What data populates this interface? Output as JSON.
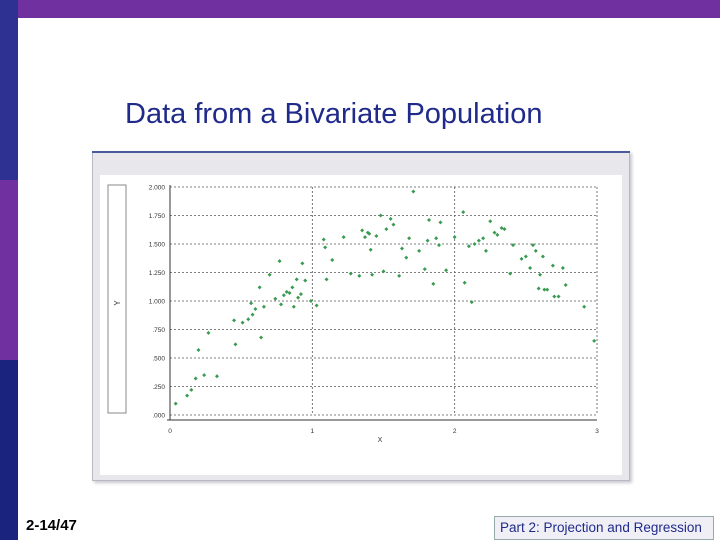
{
  "slide": {
    "title": "Data from a Bivariate Population",
    "number": "2-14/47",
    "footer": "Part 2: Projection and Regression"
  },
  "colors": {
    "accent_purple": "#7030a0",
    "accent_blue": "#2e3192",
    "title_blue": "#1f2a8a",
    "point_green": "#3a9a50"
  },
  "chart_data": {
    "type": "scatter",
    "title": "",
    "xlabel": "X",
    "ylabel": "Y",
    "xlim": [
      0,
      3
    ],
    "ylim": [
      0,
      2
    ],
    "x_ticks": [
      "0",
      "1",
      "2",
      "3"
    ],
    "y_ticks": [
      ".000",
      ".250",
      ".500",
      ".750",
      "1.000",
      "1.250",
      "1.500",
      "1.750",
      "2.000"
    ],
    "grid": true,
    "series": [
      {
        "values": [
          [
            0.04,
            0.1
          ],
          [
            0.12,
            0.17
          ],
          [
            0.15,
            0.22
          ],
          [
            0.18,
            0.32
          ],
          [
            0.2,
            0.57
          ],
          [
            0.24,
            0.35
          ],
          [
            0.27,
            0.72
          ],
          [
            0.33,
            0.34
          ],
          [
            0.45,
            0.83
          ],
          [
            0.46,
            0.62
          ],
          [
            0.51,
            0.81
          ],
          [
            0.55,
            0.84
          ],
          [
            0.57,
            0.98
          ],
          [
            0.58,
            0.88
          ],
          [
            0.6,
            0.93
          ],
          [
            0.63,
            1.12
          ],
          [
            0.64,
            0.68
          ],
          [
            0.66,
            0.95
          ],
          [
            0.7,
            1.23
          ],
          [
            0.74,
            1.02
          ],
          [
            0.77,
            1.35
          ],
          [
            0.78,
            0.97
          ],
          [
            0.8,
            1.05
          ],
          [
            0.82,
            1.08
          ],
          [
            0.84,
            1.07
          ],
          [
            0.86,
            1.12
          ],
          [
            0.87,
            0.95
          ],
          [
            0.89,
            1.19
          ],
          [
            0.9,
            1.03
          ],
          [
            0.92,
            1.06
          ],
          [
            0.93,
            1.33
          ],
          [
            0.95,
            1.18
          ],
          [
            0.99,
            1.0
          ],
          [
            1.03,
            0.96
          ],
          [
            1.08,
            1.54
          ],
          [
            1.09,
            1.47
          ],
          [
            1.1,
            1.19
          ],
          [
            1.14,
            1.36
          ],
          [
            1.22,
            1.56
          ],
          [
            1.27,
            1.24
          ],
          [
            1.33,
            1.22
          ],
          [
            1.35,
            1.62
          ],
          [
            1.37,
            1.56
          ],
          [
            1.39,
            1.6
          ],
          [
            1.4,
            1.59
          ],
          [
            1.41,
            1.45
          ],
          [
            1.42,
            1.23
          ],
          [
            1.45,
            1.57
          ],
          [
            1.48,
            1.75
          ],
          [
            1.5,
            1.26
          ],
          [
            1.52,
            1.63
          ],
          [
            1.55,
            1.72
          ],
          [
            1.57,
            1.67
          ],
          [
            1.61,
            1.22
          ],
          [
            1.63,
            1.46
          ],
          [
            1.66,
            1.38
          ],
          [
            1.68,
            1.55
          ],
          [
            1.71,
            1.96
          ],
          [
            1.75,
            1.44
          ],
          [
            1.79,
            1.28
          ],
          [
            1.81,
            1.53
          ],
          [
            1.82,
            1.71
          ],
          [
            1.85,
            1.15
          ],
          [
            1.87,
            1.55
          ],
          [
            1.89,
            1.49
          ],
          [
            1.9,
            1.69
          ],
          [
            1.94,
            1.27
          ],
          [
            2.0,
            1.56
          ],
          [
            2.06,
            1.78
          ],
          [
            2.07,
            1.16
          ],
          [
            2.1,
            1.48
          ],
          [
            2.12,
            0.99
          ],
          [
            2.14,
            1.5
          ],
          [
            2.17,
            1.53
          ],
          [
            2.2,
            1.55
          ],
          [
            2.22,
            1.44
          ],
          [
            2.25,
            1.7
          ],
          [
            2.28,
            1.6
          ],
          [
            2.3,
            1.58
          ],
          [
            2.33,
            1.64
          ],
          [
            2.35,
            1.63
          ],
          [
            2.39,
            1.24
          ],
          [
            2.41,
            1.49
          ],
          [
            2.47,
            1.37
          ],
          [
            2.5,
            1.39
          ],
          [
            2.53,
            1.29
          ],
          [
            2.55,
            1.49
          ],
          [
            2.57,
            1.44
          ],
          [
            2.59,
            1.11
          ],
          [
            2.6,
            1.23
          ],
          [
            2.62,
            1.39
          ],
          [
            2.63,
            1.1
          ],
          [
            2.65,
            1.1
          ],
          [
            2.69,
            1.31
          ],
          [
            2.7,
            1.04
          ],
          [
            2.73,
            1.04
          ],
          [
            2.76,
            1.29
          ],
          [
            2.78,
            1.14
          ],
          [
            2.91,
            0.95
          ],
          [
            2.98,
            0.65
          ]
        ]
      }
    ]
  }
}
